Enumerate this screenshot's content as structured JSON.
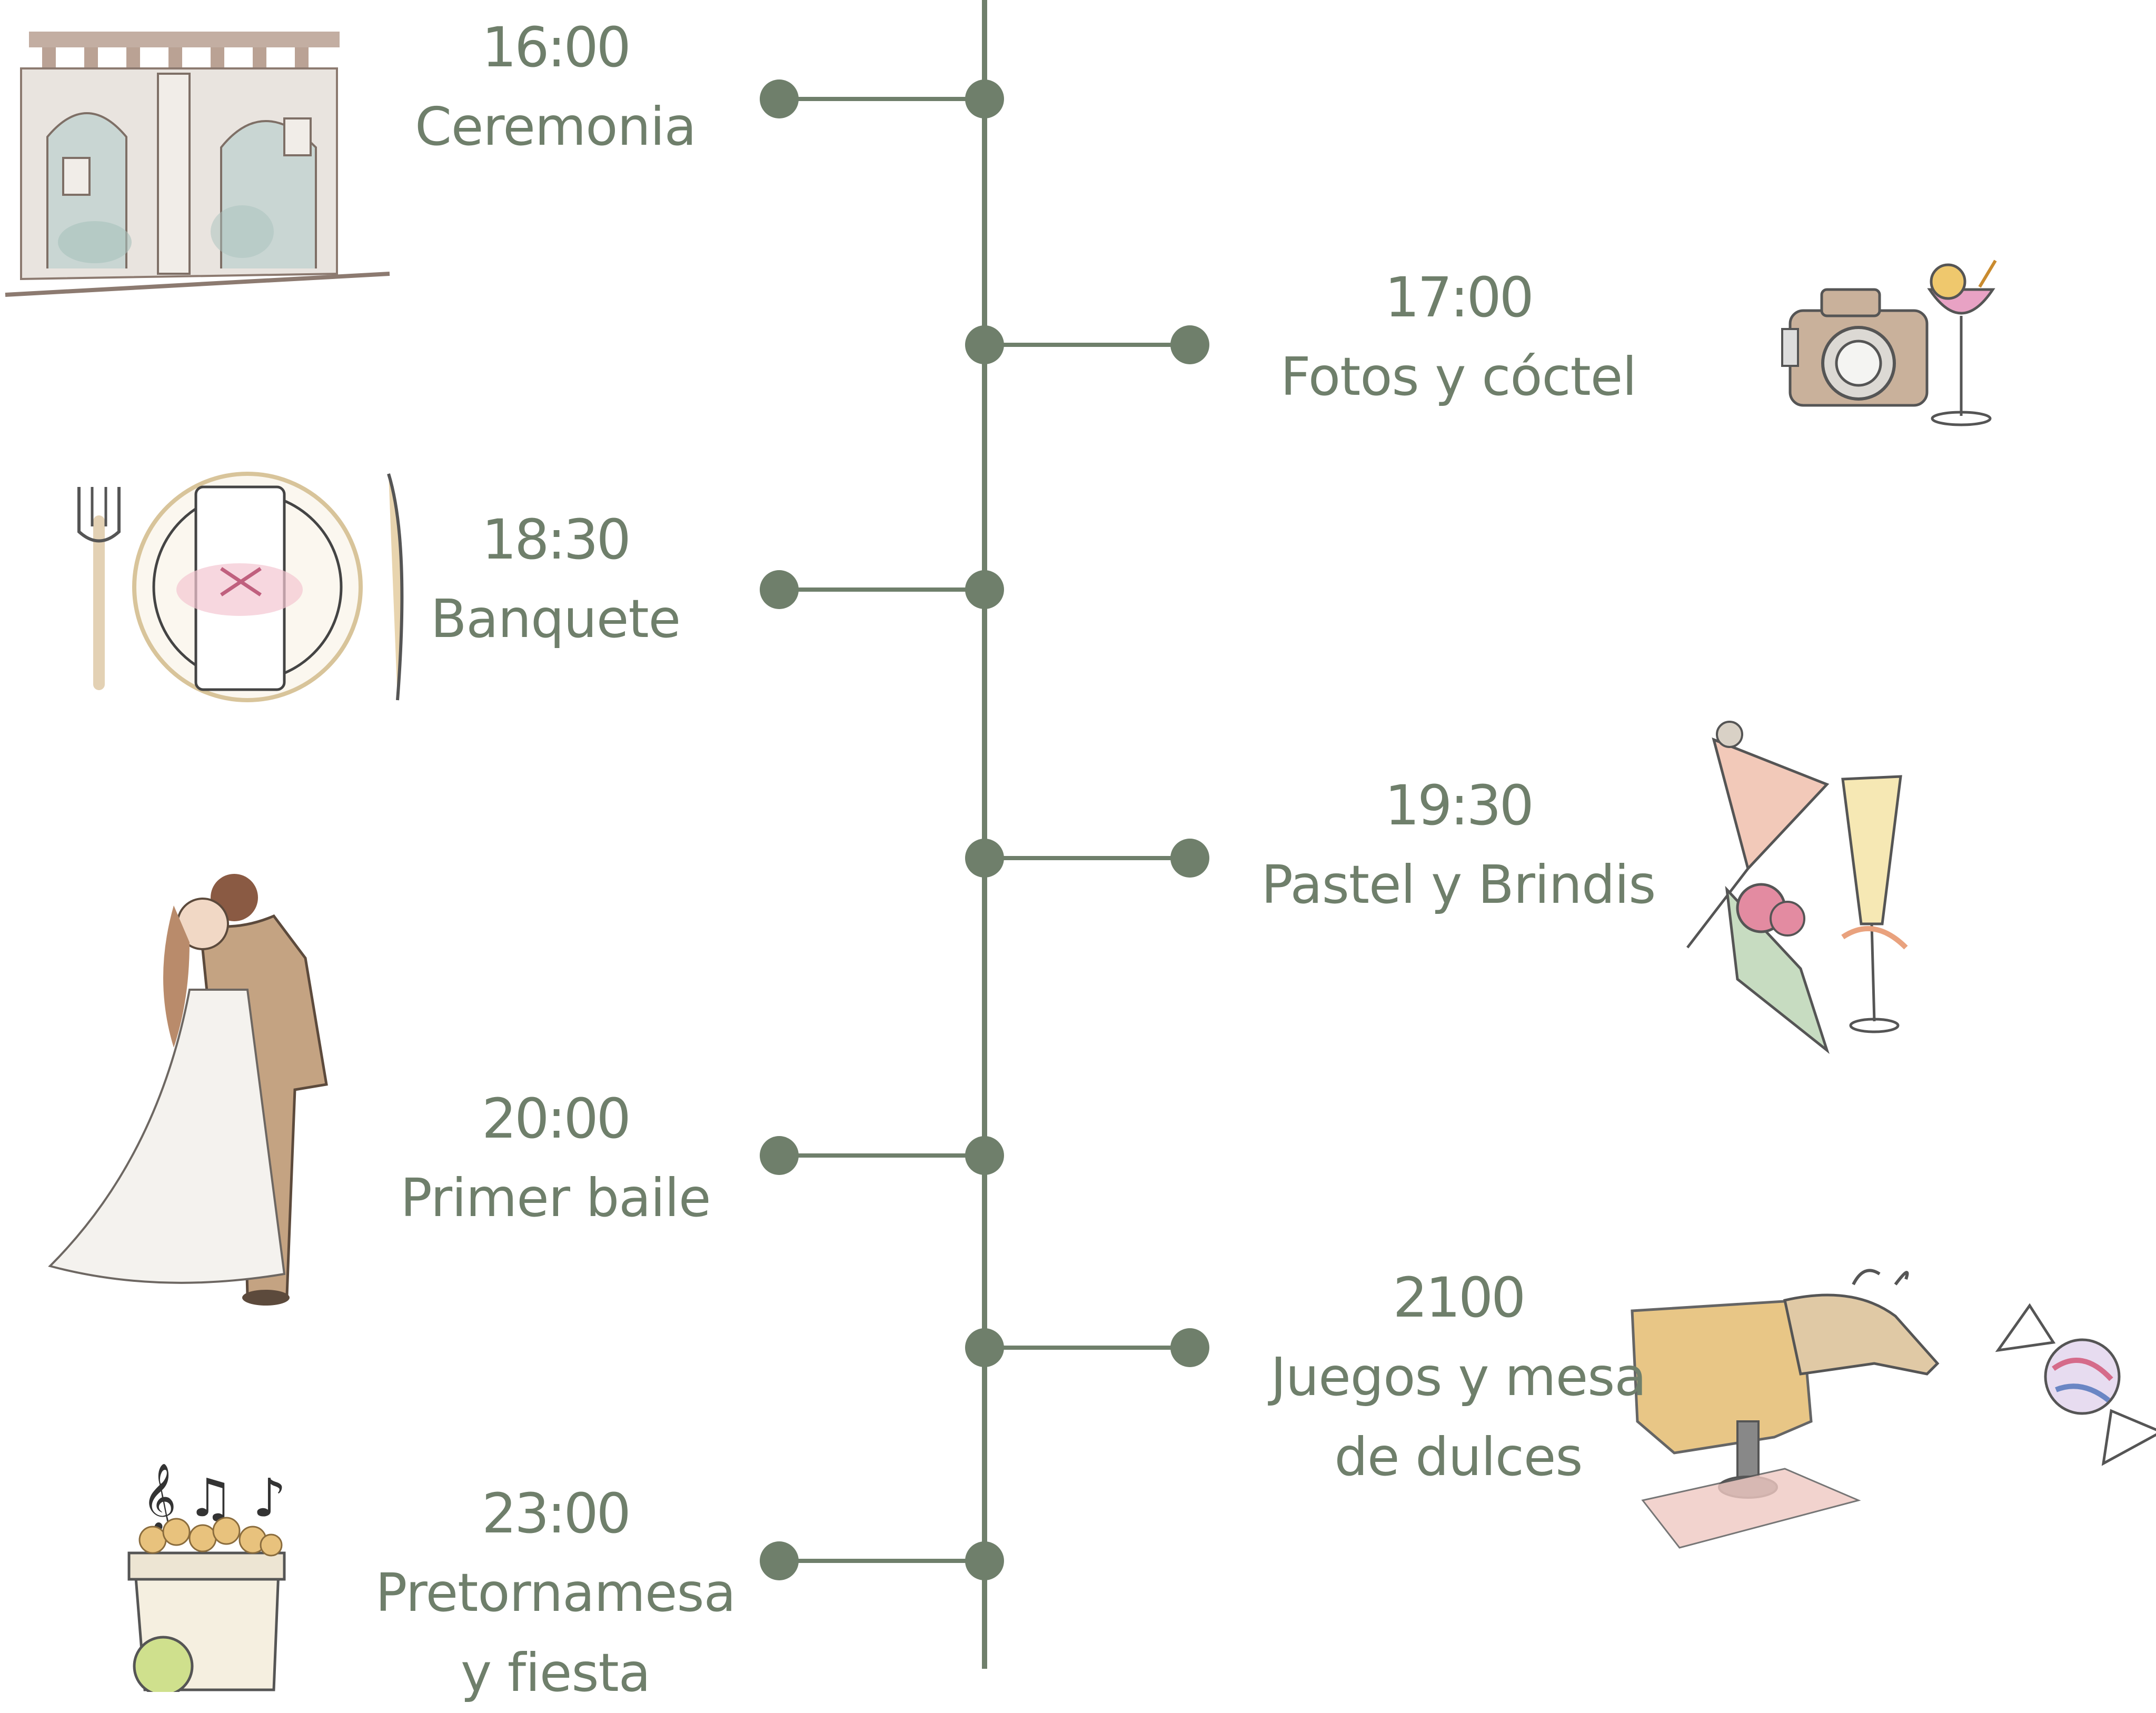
{
  "theme": {
    "line_color": "#6f7f6b",
    "text_color": "#6f7f6b",
    "background": "#ffffff"
  },
  "events": [
    {
      "time": "16:00",
      "label_lines": [
        "Ceremonia"
      ],
      "side": "left",
      "icon": "church-building-icon"
    },
    {
      "time": "17:00",
      "label_lines": [
        "Fotos y cóctel"
      ],
      "side": "right",
      "icon": "camera-cocktail-icon"
    },
    {
      "time": "18:30",
      "label_lines": [
        "Banquete"
      ],
      "side": "left",
      "icon": "plate-cutlery-icon"
    },
    {
      "time": "19:30",
      "label_lines": [
        "Pastel y Brindis"
      ],
      "side": "right",
      "icon": "cake-champagne-icon"
    },
    {
      "time": "20:00",
      "label_lines": [
        "Primer baile"
      ],
      "side": "left",
      "icon": "couple-kiss-icon"
    },
    {
      "time": "2100",
      "label_lines": [
        "Juegos  y  mesa",
        "de dulces"
      ],
      "side": "right",
      "icon": "bull-candy-icon"
    },
    {
      "time": "23:00",
      "label_lines": [
        "Pretornamesa",
        "y fiesta"
      ],
      "side": "left",
      "icon": "music-popcorn-icon"
    }
  ]
}
